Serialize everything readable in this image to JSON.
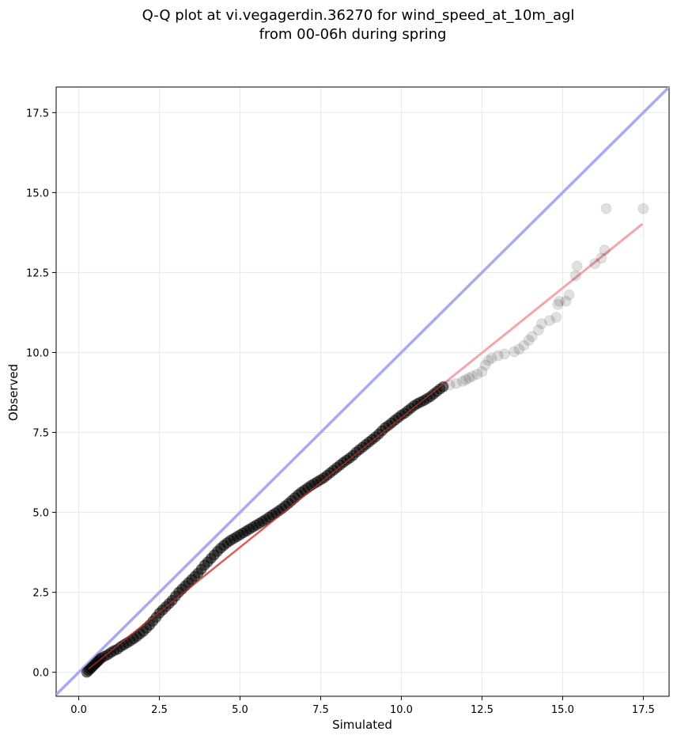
{
  "chart_data": {
    "type": "scatter",
    "title_lines": [
      "Q-Q plot at vi.vegagerdin.36270 for wind_speed_at_10m_agl",
      "from 00-06h during spring"
    ],
    "xlabel": "Simulated",
    "ylabel": "Observed",
    "xlim": [
      -0.7,
      18.3
    ],
    "ylim": [
      -0.75,
      18.3
    ],
    "xticks": [
      0.0,
      2.5,
      5.0,
      7.5,
      10.0,
      12.5,
      15.0,
      17.5
    ],
    "yticks": [
      0.0,
      2.5,
      5.0,
      7.5,
      10.0,
      12.5,
      15.0,
      17.5
    ],
    "xtick_labels": [
      "0.0",
      "2.5",
      "5.0",
      "7.5",
      "10.0",
      "12.5",
      "15.0",
      "17.5"
    ],
    "ytick_labels": [
      "0.0",
      "2.5",
      "5.0",
      "7.5",
      "10.0",
      "12.5",
      "15.0",
      "17.5"
    ],
    "grid": true,
    "colors": {
      "points": "#000000",
      "identity_line": "#a8aaf2",
      "fit_line": "#f2a7a8",
      "fit_line_dense": "#c0392b",
      "grid": "#ebebeb"
    },
    "identity_line": {
      "x": [
        -0.7,
        18.3
      ],
      "y": [
        -0.7,
        18.3
      ]
    },
    "fit_line": {
      "x": [
        0.3,
        17.45
      ],
      "y": [
        0.1,
        14.0
      ]
    },
    "series": [
      {
        "values": [
          [
            0.25,
            0.0
          ],
          [
            0.3,
            0.05
          ],
          [
            0.35,
            0.1
          ],
          [
            0.4,
            0.15
          ],
          [
            0.45,
            0.2
          ],
          [
            0.5,
            0.25
          ],
          [
            0.55,
            0.3
          ],
          [
            0.6,
            0.35
          ],
          [
            0.65,
            0.4
          ],
          [
            0.7,
            0.45
          ],
          [
            0.8,
            0.5
          ],
          [
            0.9,
            0.55
          ],
          [
            1.0,
            0.62
          ],
          [
            1.1,
            0.68
          ],
          [
            1.2,
            0.72
          ],
          [
            1.3,
            0.8
          ],
          [
            1.4,
            0.86
          ],
          [
            1.5,
            0.92
          ],
          [
            1.6,
            0.98
          ],
          [
            1.7,
            1.05
          ],
          [
            1.8,
            1.12
          ],
          [
            1.9,
            1.2
          ],
          [
            2.0,
            1.28
          ],
          [
            2.1,
            1.38
          ],
          [
            2.2,
            1.48
          ],
          [
            2.3,
            1.6
          ],
          [
            2.4,
            1.72
          ],
          [
            2.5,
            1.85
          ],
          [
            2.6,
            1.95
          ],
          [
            2.7,
            2.05
          ],
          [
            2.8,
            2.15
          ],
          [
            2.9,
            2.25
          ],
          [
            3.0,
            2.38
          ],
          [
            3.1,
            2.5
          ],
          [
            3.2,
            2.6
          ],
          [
            3.3,
            2.7
          ],
          [
            3.4,
            2.8
          ],
          [
            3.5,
            2.9
          ],
          [
            3.6,
            3.0
          ],
          [
            3.7,
            3.1
          ],
          [
            3.8,
            3.22
          ],
          [
            3.9,
            3.35
          ],
          [
            4.0,
            3.45
          ],
          [
            4.1,
            3.56
          ],
          [
            4.2,
            3.67
          ],
          [
            4.3,
            3.78
          ],
          [
            4.4,
            3.88
          ],
          [
            4.5,
            3.97
          ],
          [
            4.6,
            4.05
          ],
          [
            4.7,
            4.12
          ],
          [
            4.8,
            4.18
          ],
          [
            4.9,
            4.24
          ],
          [
            5.0,
            4.3
          ],
          [
            5.1,
            4.36
          ],
          [
            5.2,
            4.42
          ],
          [
            5.3,
            4.48
          ],
          [
            5.4,
            4.54
          ],
          [
            5.5,
            4.6
          ],
          [
            5.6,
            4.66
          ],
          [
            5.7,
            4.72
          ],
          [
            5.8,
            4.78
          ],
          [
            5.9,
            4.85
          ],
          [
            6.0,
            4.92
          ],
          [
            6.1,
            4.98
          ],
          [
            6.2,
            5.05
          ],
          [
            6.3,
            5.12
          ],
          [
            6.4,
            5.2
          ],
          [
            6.5,
            5.28
          ],
          [
            6.6,
            5.37
          ],
          [
            6.7,
            5.46
          ],
          [
            6.8,
            5.55
          ],
          [
            6.9,
            5.63
          ],
          [
            7.0,
            5.7
          ],
          [
            7.1,
            5.77
          ],
          [
            7.2,
            5.84
          ],
          [
            7.3,
            5.9
          ],
          [
            7.4,
            5.96
          ],
          [
            7.5,
            6.02
          ],
          [
            7.6,
            6.08
          ],
          [
            7.7,
            6.16
          ],
          [
            7.8,
            6.24
          ],
          [
            7.9,
            6.32
          ],
          [
            8.0,
            6.4
          ],
          [
            8.1,
            6.48
          ],
          [
            8.2,
            6.56
          ],
          [
            8.3,
            6.63
          ],
          [
            8.4,
            6.7
          ],
          [
            8.5,
            6.78
          ],
          [
            8.6,
            6.88
          ],
          [
            8.7,
            6.96
          ],
          [
            8.8,
            7.04
          ],
          [
            8.9,
            7.12
          ],
          [
            9.0,
            7.2
          ],
          [
            9.1,
            7.28
          ],
          [
            9.2,
            7.36
          ],
          [
            9.3,
            7.45
          ],
          [
            9.4,
            7.55
          ],
          [
            9.5,
            7.65
          ],
          [
            9.6,
            7.72
          ],
          [
            9.7,
            7.8
          ],
          [
            9.8,
            7.88
          ],
          [
            9.9,
            7.96
          ],
          [
            10.0,
            8.04
          ],
          [
            10.1,
            8.1
          ],
          [
            10.2,
            8.18
          ],
          [
            10.3,
            8.26
          ],
          [
            10.4,
            8.34
          ],
          [
            10.5,
            8.4
          ],
          [
            10.6,
            8.45
          ],
          [
            10.7,
            8.5
          ],
          [
            10.8,
            8.56
          ],
          [
            10.9,
            8.62
          ],
          [
            11.0,
            8.7
          ],
          [
            11.1,
            8.78
          ],
          [
            11.2,
            8.86
          ],
          [
            11.3,
            8.93
          ],
          [
            11.5,
            8.98
          ],
          [
            11.7,
            9.03
          ],
          [
            11.9,
            9.1
          ],
          [
            12.0,
            9.15
          ],
          [
            12.1,
            9.2
          ],
          [
            12.2,
            9.26
          ],
          [
            12.35,
            9.32
          ],
          [
            12.5,
            9.4
          ],
          [
            12.6,
            9.6
          ],
          [
            12.7,
            9.75
          ],
          [
            12.8,
            9.82
          ],
          [
            13.0,
            9.9
          ],
          [
            13.2,
            9.95
          ],
          [
            13.5,
            10.02
          ],
          [
            13.65,
            10.1
          ],
          [
            13.8,
            10.22
          ],
          [
            13.95,
            10.38
          ],
          [
            14.05,
            10.5
          ],
          [
            14.25,
            10.7
          ],
          [
            14.35,
            10.9
          ],
          [
            14.6,
            11.0
          ],
          [
            14.8,
            11.1
          ],
          [
            14.85,
            11.5
          ],
          [
            14.9,
            11.6
          ],
          [
            15.1,
            11.6
          ],
          [
            15.2,
            11.8
          ],
          [
            15.4,
            12.4
          ],
          [
            15.45,
            12.7
          ],
          [
            16.0,
            12.78
          ],
          [
            16.2,
            12.95
          ],
          [
            16.3,
            13.2
          ],
          [
            16.35,
            14.5
          ],
          [
            17.5,
            14.5
          ]
        ]
      }
    ]
  }
}
